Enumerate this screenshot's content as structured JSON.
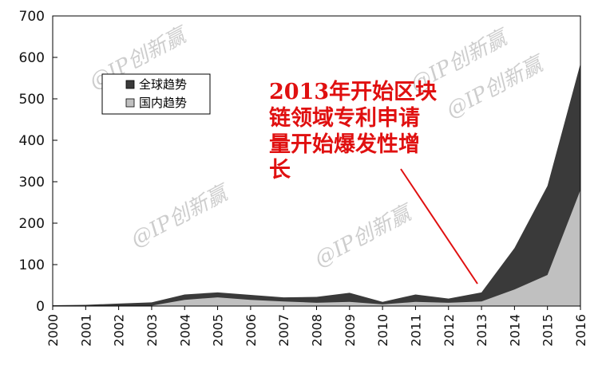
{
  "chart_data": {
    "type": "area",
    "title": "",
    "xlabel": "",
    "ylabel": "",
    "ylim": [
      0,
      700
    ],
    "yticks": [
      "0",
      "100",
      "200",
      "300",
      "400",
      "500",
      "600",
      "700"
    ],
    "x": [
      "2000",
      "2001",
      "2002",
      "2003",
      "2004",
      "2005",
      "2006",
      "2007",
      "2008",
      "2009",
      "2010",
      "2011",
      "2012",
      "2013",
      "2014",
      "2015",
      "2016"
    ],
    "series": [
      {
        "name": "全球趋势",
        "color": "#3a3a3a",
        "values": [
          2,
          3,
          6,
          9,
          28,
          33,
          27,
          21,
          22,
          32,
          10,
          28,
          18,
          33,
          140,
          290,
          585
        ]
      },
      {
        "name": "国内趋势",
        "color": "#c0c0c0",
        "values": [
          0,
          0,
          0,
          1,
          15,
          21,
          15,
          11,
          8,
          10,
          4,
          10,
          8,
          11,
          40,
          75,
          280
        ]
      }
    ],
    "legend_position": "top-left",
    "grid": false,
    "annotation": {
      "lines": [
        "2013年开始区块",
        "链领域专利申请",
        "量开始爆发性增",
        "长"
      ],
      "color": "#e01010",
      "arrow_to_x": "2013"
    }
  },
  "watermarks": [
    "@IP创新赢",
    "@IP创新赢",
    "@IP创新赢",
    "@IP创新赢",
    "@IP创新赢"
  ]
}
